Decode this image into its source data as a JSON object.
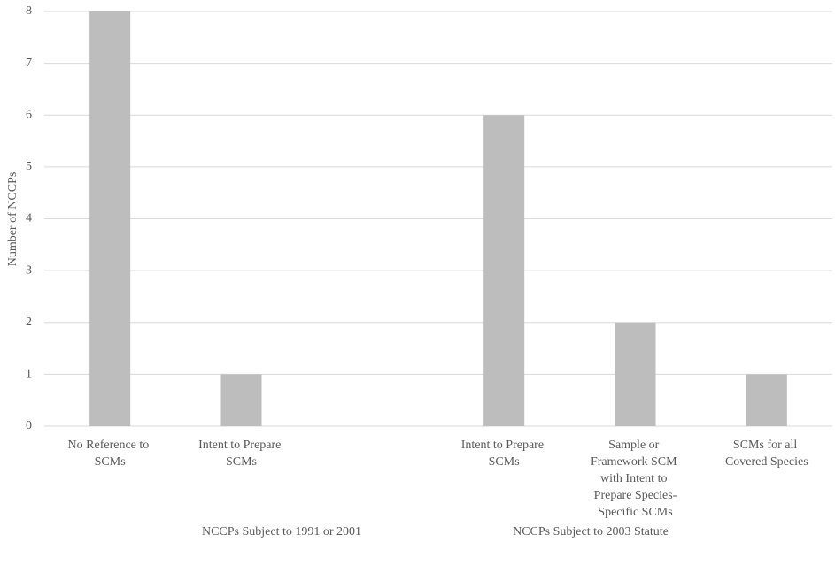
{
  "chart_data": {
    "type": "bar",
    "y_axis_label": "Number of NCCPs",
    "categories": [
      "No Reference to SCMs",
      "Intent to Prepare SCMs",
      null,
      "Intent to Prepare SCMs",
      "Sample or Framework SCM with Intent to Prepare Species-Specific SCMs",
      "SCMs for all Covered Species"
    ],
    "values": [
      8,
      1,
      null,
      6,
      2,
      1
    ],
    "groups": [
      "NCCPs Subject to 1991 or 2001",
      "NCCPs Subject to 2003 Statute"
    ],
    "color": "#bdbdbd",
    "ylim": [
      0,
      8
    ],
    "yticks": [
      0,
      1,
      2,
      3,
      4,
      5,
      6,
      7,
      8
    ],
    "grid": true
  }
}
